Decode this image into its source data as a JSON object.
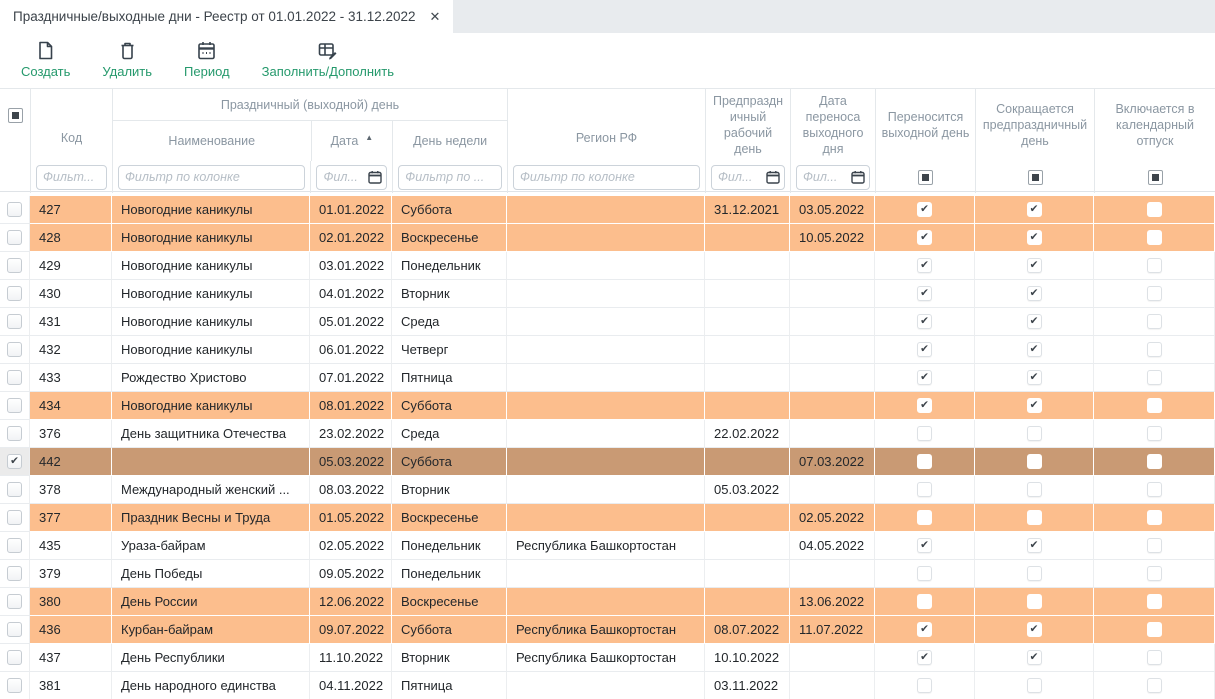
{
  "tab": {
    "title": "Праздничные/выходные дни - Реестр от 01.01.2022 - 31.12.2022"
  },
  "glyphs": {
    "check": "✔",
    "close": "✕",
    "sort_asc": "▲"
  },
  "toolbar": {
    "buttons": [
      {
        "label": "Создать",
        "icon": "new-document-icon"
      },
      {
        "label": "Удалить",
        "icon": "trash-icon"
      },
      {
        "label": "Период",
        "icon": "calendar-icon"
      },
      {
        "label": "Заполнить/Дополнить",
        "icon": "fill-table-icon"
      }
    ]
  },
  "table": {
    "group_header": "Праздничный (выходной) день",
    "sorted_by": "Дата",
    "sort_dir": "asc",
    "columns": {
      "code": "Код",
      "name": "Наименование",
      "date": "Дата",
      "weekday": "День недели",
      "region": "Регион РФ",
      "pre_holiday": "Предпраздничный рабочий день",
      "transfer": "Дата переноса выходного дня",
      "carry": "Переносится выходной день",
      "shorten": "Сокращается предпраздничный день",
      "vacation": "Включается в календарный отпуск"
    },
    "filters": {
      "code": "Фильт...",
      "name": "Фильтр по колонке",
      "date": "Фил...",
      "weekday": "Фильтр по ...",
      "region": "Фильтр по колонке",
      "pre_holiday": "Фил...",
      "transfer": "Фил..."
    },
    "header_checkbox_states": {
      "select_all": "indeterminate",
      "carry": "indeterminate",
      "shorten": "indeterminate",
      "vacation": "indeterminate"
    },
    "rows": [
      {
        "code": "427",
        "name": "Новогодние каникулы",
        "date": "01.01.2022",
        "weekday": "Суббота",
        "region": "",
        "pre_holiday": "31.12.2021",
        "transfer": "03.05.2022",
        "carry": true,
        "shorten": true,
        "vacation": false,
        "highlight": "orange",
        "selected": false
      },
      {
        "code": "428",
        "name": "Новогодние каникулы",
        "date": "02.01.2022",
        "weekday": "Воскресенье",
        "region": "",
        "pre_holiday": "",
        "transfer": "10.05.2022",
        "carry": true,
        "shorten": true,
        "vacation": false,
        "highlight": "orange",
        "selected": false
      },
      {
        "code": "429",
        "name": "Новогодние каникулы",
        "date": "03.01.2022",
        "weekday": "Понедельник",
        "region": "",
        "pre_holiday": "",
        "transfer": "",
        "carry": true,
        "shorten": true,
        "vacation": false,
        "highlight": "none",
        "selected": false
      },
      {
        "code": "430",
        "name": "Новогодние каникулы",
        "date": "04.01.2022",
        "weekday": "Вторник",
        "region": "",
        "pre_holiday": "",
        "transfer": "",
        "carry": true,
        "shorten": true,
        "vacation": false,
        "highlight": "none",
        "selected": false
      },
      {
        "code": "431",
        "name": "Новогодние каникулы",
        "date": "05.01.2022",
        "weekday": "Среда",
        "region": "",
        "pre_holiday": "",
        "transfer": "",
        "carry": true,
        "shorten": true,
        "vacation": false,
        "highlight": "none",
        "selected": false
      },
      {
        "code": "432",
        "name": "Новогодние каникулы",
        "date": "06.01.2022",
        "weekday": "Четверг",
        "region": "",
        "pre_holiday": "",
        "transfer": "",
        "carry": true,
        "shorten": true,
        "vacation": false,
        "highlight": "none",
        "selected": false
      },
      {
        "code": "433",
        "name": "Рождество Христово",
        "date": "07.01.2022",
        "weekday": "Пятница",
        "region": "",
        "pre_holiday": "",
        "transfer": "",
        "carry": true,
        "shorten": true,
        "vacation": false,
        "highlight": "none",
        "selected": false
      },
      {
        "code": "434",
        "name": "Новогодние каникулы",
        "date": "08.01.2022",
        "weekday": "Суббота",
        "region": "",
        "pre_holiday": "",
        "transfer": "",
        "carry": true,
        "shorten": true,
        "vacation": false,
        "highlight": "orange",
        "selected": false
      },
      {
        "code": "376",
        "name": "День защитника Отечества",
        "date": "23.02.2022",
        "weekday": "Среда",
        "region": "",
        "pre_holiday": "22.02.2022",
        "transfer": "",
        "carry": false,
        "shorten": false,
        "vacation": false,
        "highlight": "none",
        "selected": false
      },
      {
        "code": "442",
        "name": "",
        "date": "05.03.2022",
        "weekday": "Суббота",
        "region": "",
        "pre_holiday": "",
        "transfer": "07.03.2022",
        "carry": false,
        "shorten": false,
        "vacation": false,
        "highlight": "selected",
        "selected": true
      },
      {
        "code": "378",
        "name": "Международный женский ...",
        "date": "08.03.2022",
        "weekday": "Вторник",
        "region": "",
        "pre_holiday": "05.03.2022",
        "transfer": "",
        "carry": false,
        "shorten": false,
        "vacation": false,
        "highlight": "none",
        "selected": false
      },
      {
        "code": "377",
        "name": "Праздник Весны и Труда",
        "date": "01.05.2022",
        "weekday": "Воскресенье",
        "region": "",
        "pre_holiday": "",
        "transfer": "02.05.2022",
        "carry": false,
        "shorten": false,
        "vacation": false,
        "highlight": "orange",
        "selected": false
      },
      {
        "code": "435",
        "name": "Ураза-байрам",
        "date": "02.05.2022",
        "weekday": "Понедельник",
        "region": "Республика Башкортостан",
        "pre_holiday": "",
        "transfer": "04.05.2022",
        "carry": true,
        "shorten": true,
        "vacation": false,
        "highlight": "none",
        "selected": false
      },
      {
        "code": "379",
        "name": "День Победы",
        "date": "09.05.2022",
        "weekday": "Понедельник",
        "region": "",
        "pre_holiday": "",
        "transfer": "",
        "carry": false,
        "shorten": false,
        "vacation": false,
        "highlight": "none",
        "selected": false
      },
      {
        "code": "380",
        "name": "День России",
        "date": "12.06.2022",
        "weekday": "Воскресенье",
        "region": "",
        "pre_holiday": "",
        "transfer": "13.06.2022",
        "carry": false,
        "shorten": false,
        "vacation": false,
        "highlight": "orange",
        "selected": false
      },
      {
        "code": "436",
        "name": "Курбан-байрам",
        "date": "09.07.2022",
        "weekday": "Суббота",
        "region": "Республика Башкортостан",
        "pre_holiday": "08.07.2022",
        "transfer": "11.07.2022",
        "carry": true,
        "shorten": true,
        "vacation": false,
        "highlight": "orange",
        "selected": false
      },
      {
        "code": "437",
        "name": "День Республики",
        "date": "11.10.2022",
        "weekday": "Вторник",
        "region": "Республика Башкортостан",
        "pre_holiday": "10.10.2022",
        "transfer": "",
        "carry": true,
        "shorten": true,
        "vacation": false,
        "highlight": "none",
        "selected": false
      },
      {
        "code": "381",
        "name": "День народного единства",
        "date": "04.11.2022",
        "weekday": "Пятница",
        "region": "",
        "pre_holiday": "03.11.2022",
        "transfer": "",
        "carry": false,
        "shorten": false,
        "vacation": false,
        "highlight": "none",
        "selected": false
      }
    ]
  },
  "colors": {
    "row_highlight_orange": "#fcbe8d",
    "row_selected_brown": "#c99a74",
    "toolbar_label_green": "#25996c",
    "header_text_gray": "#8b97a2",
    "tabbar_gray": "#e8ebee"
  }
}
